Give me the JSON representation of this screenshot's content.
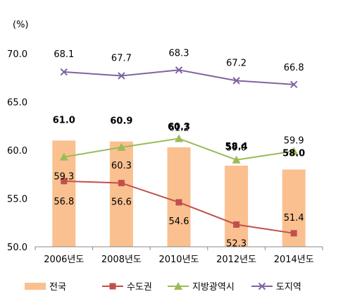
{
  "chart_data": {
    "type": "bar",
    "unit_label": "(%)",
    "categories": [
      "2006년도",
      "2008년도",
      "2010년도",
      "2012년도",
      "2014년도"
    ],
    "ylim": [
      50.0,
      70.0
    ],
    "yticks": [
      "70.0",
      "65.0",
      "60.0",
      "55.0",
      "50.0"
    ],
    "ytick_values": [
      70,
      65,
      60,
      55,
      50
    ],
    "grid": false,
    "legend_position": "bottom",
    "series": [
      {
        "name": "전국",
        "type": "bar",
        "color": "#FAC090",
        "values": [
          61.0,
          60.9,
          60.3,
          58.4,
          58.0
        ],
        "labels": [
          "61.0",
          "60.9",
          "60.3",
          "58.4",
          "58.0"
        ]
      },
      {
        "name": "수도권",
        "type": "line",
        "marker": "square",
        "color": "#C0504D",
        "values": [
          56.8,
          56.6,
          54.6,
          52.3,
          51.4
        ],
        "labels": [
          "56.8",
          "56.6",
          "54.6",
          "52.3",
          "51.4"
        ]
      },
      {
        "name": "지방광역시",
        "type": "line",
        "marker": "triangle",
        "color": "#9BBB59",
        "values": [
          59.3,
          60.3,
          61.2,
          59.0,
          59.9
        ],
        "labels": [
          "59.3",
          "60.3",
          "61.2",
          "59.0",
          "59.9"
        ]
      },
      {
        "name": "도지역",
        "type": "line",
        "marker": "x",
        "color": "#8064A2",
        "values": [
          68.1,
          67.7,
          68.3,
          67.2,
          66.8
        ],
        "labels": [
          "68.1",
          "67.7",
          "68.3",
          "67.2",
          "66.8"
        ]
      }
    ]
  }
}
